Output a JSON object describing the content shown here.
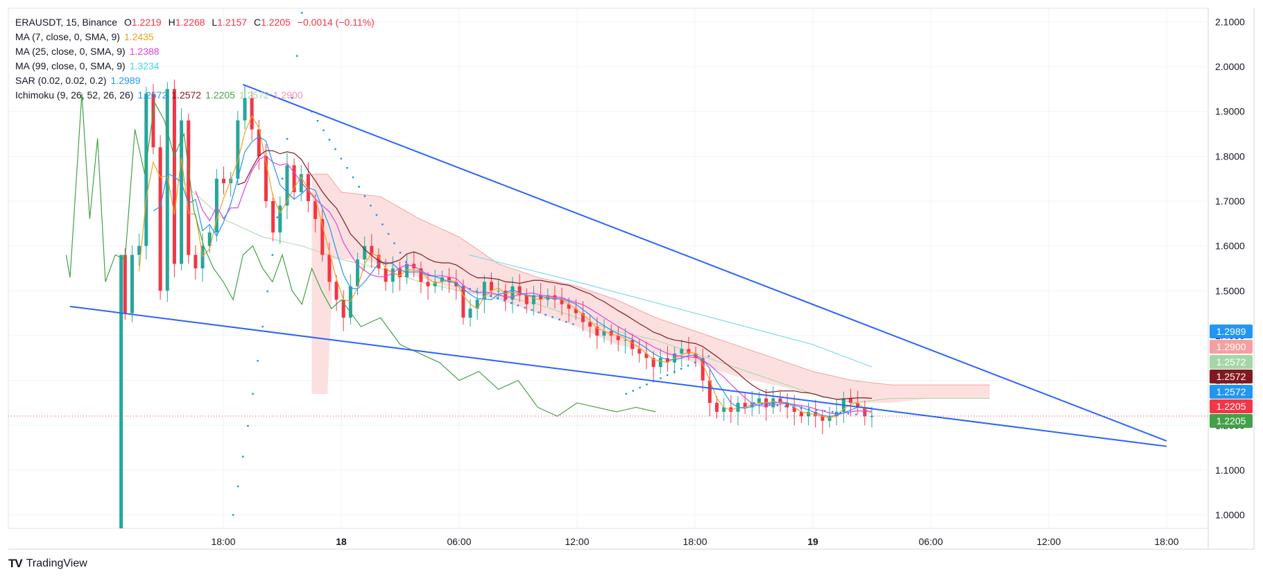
{
  "header": {
    "symbol": "ERAUSDT, 15, Binance",
    "open_label": "O",
    "open": "1.2219",
    "high_label": "H",
    "high": "1.2268",
    "low_label": "L",
    "low": "1.2157",
    "close_label": "C",
    "close": "1.2205",
    "change": "−0.0014 (−0.11%)"
  },
  "indicators": [
    {
      "label": "MA (7, close, 0, SMA, 9)",
      "values": [
        "1.2435"
      ],
      "colors": [
        "#f0a020"
      ]
    },
    {
      "label": "MA (25, close, 0, SMA, 9)",
      "values": [
        "1.2388"
      ],
      "colors": [
        "#e040e0"
      ]
    },
    {
      "label": "MA (99, close, 0, SMA, 9)",
      "values": [
        "1.3234"
      ],
      "colors": [
        "#40d8e8"
      ]
    },
    {
      "label": "SAR (0.02, 0.02, 0.2)",
      "values": [
        "1.2989"
      ],
      "colors": [
        "#2196f3"
      ]
    },
    {
      "label": "Ichimoku (9, 26, 52, 26, 26)",
      "values": [
        "1.2572",
        "1.2572",
        "1.2205",
        "1.2572",
        "1.2900"
      ],
      "colors": [
        "#2196f3",
        "#801922",
        "#43a047",
        "#a5d6a7",
        "#f48fb1"
      ]
    }
  ],
  "brand": {
    "name": "TradingView",
    "logo": "TV"
  },
  "chart_data": {
    "type": "candlestick",
    "interval": "15",
    "ylim": [
      0.97,
      2.13
    ],
    "y_ticks": [
      "1.0000",
      "1.1000",
      "1.2000",
      "1.3000",
      "1.4000",
      "1.5000",
      "1.6000",
      "1.7000",
      "1.8000",
      "1.9000",
      "2.0000",
      "2.1000"
    ],
    "x_ticks": [
      "18:00",
      "18",
      "06:00",
      "12:00",
      "18:00",
      "19",
      "06:00",
      "12:00",
      "18:00"
    ],
    "grid": true,
    "price_labels": [
      {
        "value": "1.2989",
        "color": "#2196f3"
      },
      {
        "value": "1.2900",
        "color": "#f4a0a0"
      },
      {
        "value": "1.2572",
        "color": "#a5d6a7"
      },
      {
        "value": "1.2572",
        "color": "#801922"
      },
      {
        "value": "1.2572",
        "color": "#2196f3"
      },
      {
        "value": "1.2205",
        "color": "#f23645"
      },
      {
        "value": "1.2205",
        "color": "#43a047"
      }
    ],
    "current_price": 1.2205,
    "colors": {
      "up": "#26a69a",
      "down": "#f23645",
      "trend": "#2962ff",
      "cloud_bear": "#fbd5d5",
      "cloud_bull": "#d6f0d8"
    },
    "close": [
      1.45,
      1.58,
      1.6,
      1.94,
      1.82,
      1.5,
      1.95,
      1.56,
      1.88,
      1.58,
      1.55,
      1.6,
      1.63,
      1.75,
      1.74,
      1.75,
      1.88,
      1.93,
      1.86,
      1.8,
      1.7,
      1.63,
      1.69,
      1.78,
      1.72,
      1.76,
      1.7,
      1.66,
      1.58,
      1.52,
      1.48,
      1.44,
      1.51,
      1.57,
      1.6,
      1.58,
      1.55,
      1.52,
      1.55,
      1.53,
      1.56,
      1.55,
      1.52,
      1.51,
      1.52,
      1.53,
      1.52,
      1.51,
      1.44,
      1.46,
      1.48,
      1.52,
      1.5,
      1.5,
      1.48,
      1.51,
      1.49,
      1.47,
      1.49,
      1.48,
      1.49,
      1.48,
      1.47,
      1.46,
      1.45,
      1.43,
      1.42,
      1.4,
      1.41,
      1.4,
      1.39,
      1.39,
      1.37,
      1.36,
      1.35,
      1.33,
      1.35,
      1.34,
      1.36,
      1.37,
      1.36,
      1.35,
      1.3,
      1.25,
      1.23,
      1.24,
      1.23,
      1.25,
      1.24,
      1.25,
      1.26,
      1.24,
      1.26,
      1.25,
      1.24,
      1.23,
      1.22,
      1.23,
      1.22,
      1.21,
      1.22,
      1.23,
      1.26,
      1.25,
      1.24,
      1.22,
      1.22
    ],
    "trendlines": [
      {
        "from": [
          "day 17 18:40",
          1.96
        ],
        "to": [
          "day 19 18:00",
          1.165
        ]
      },
      {
        "from": [
          "day 17 16:00",
          1.465
        ],
        "to": [
          "day 19 18:00",
          1.153
        ]
      }
    ]
  }
}
